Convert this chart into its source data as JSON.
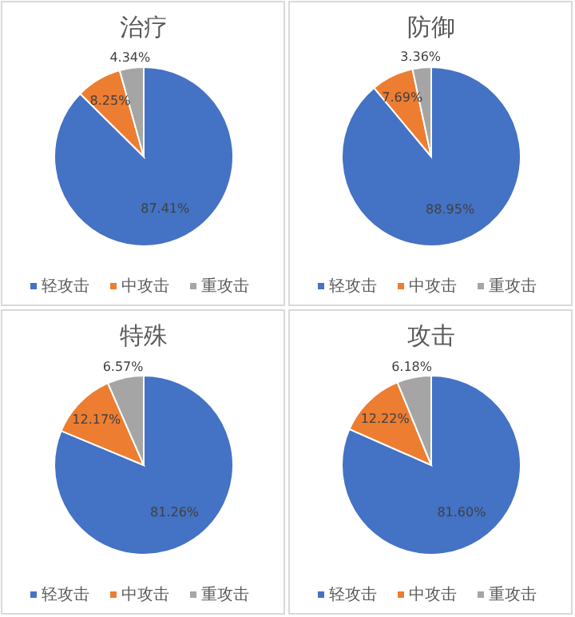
{
  "chart_data": [
    {
      "type": "pie",
      "title": "治疗",
      "categories": [
        "轻攻击",
        "中攻击",
        "重攻击"
      ],
      "values": [
        87.41,
        8.25,
        4.34
      ],
      "colors": [
        "#4472c4",
        "#ed7d31",
        "#a5a5a5"
      ],
      "value_labels": [
        "87.41%",
        "8.25%",
        "4.34%"
      ],
      "legend": "bottom"
    },
    {
      "type": "pie",
      "title": "防御",
      "categories": [
        "轻攻击",
        "中攻击",
        "重攻击"
      ],
      "values": [
        88.95,
        7.69,
        3.36
      ],
      "colors": [
        "#4472c4",
        "#ed7d31",
        "#a5a5a5"
      ],
      "value_labels": [
        "88.95%",
        "7.69%",
        "3.36%"
      ],
      "legend": "bottom"
    },
    {
      "type": "pie",
      "title": "特殊",
      "categories": [
        "轻攻击",
        "中攻击",
        "重攻击"
      ],
      "values": [
        81.26,
        12.17,
        6.57
      ],
      "colors": [
        "#4472c4",
        "#ed7d31",
        "#a5a5a5"
      ],
      "value_labels": [
        "81.26%",
        "12.17%",
        "6.57%"
      ],
      "legend": "bottom"
    },
    {
      "type": "pie",
      "title": "攻击",
      "categories": [
        "轻攻击",
        "中攻击",
        "重攻击"
      ],
      "values": [
        81.6,
        12.22,
        6.18
      ],
      "colors": [
        "#4472c4",
        "#ed7d31",
        "#a5a5a5"
      ],
      "value_labels": [
        "81.60%",
        "12.22%",
        "6.18%"
      ],
      "legend": "bottom"
    }
  ]
}
